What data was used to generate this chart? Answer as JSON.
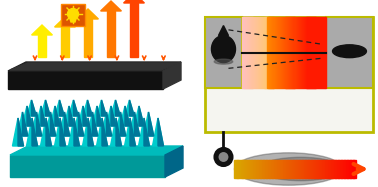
{
  "bg_color": "#ffffff",
  "spike_color_light": "#00cccc",
  "spike_color_dark": "#007799",
  "teal_top": "#00bbbb",
  "teal_side": "#006688",
  "teal_base": "#009999",
  "black_plate": "#111111",
  "plate_top": "#222222",
  "plate_side": "#333333",
  "arrow_up_colors": [
    "#ffee00",
    "#ffcc00",
    "#ffaa00",
    "#ff7700",
    "#ff4400"
  ],
  "arrow_down_color": "#ff5500",
  "bulb_box_color": "#dd5500",
  "bulb_color": "#ffdd00",
  "gray_box_color": "#aaaaaa",
  "pink_fill": "#ffccbb",
  "orange_right": "#ff5500",
  "dashed_color": "#222222",
  "connector_color": "#111111",
  "gradient_arrow_color": "#ff4400",
  "blur_droplet_color": "#555555",
  "border_color": "#bbbb00",
  "white": "#ffffff"
}
